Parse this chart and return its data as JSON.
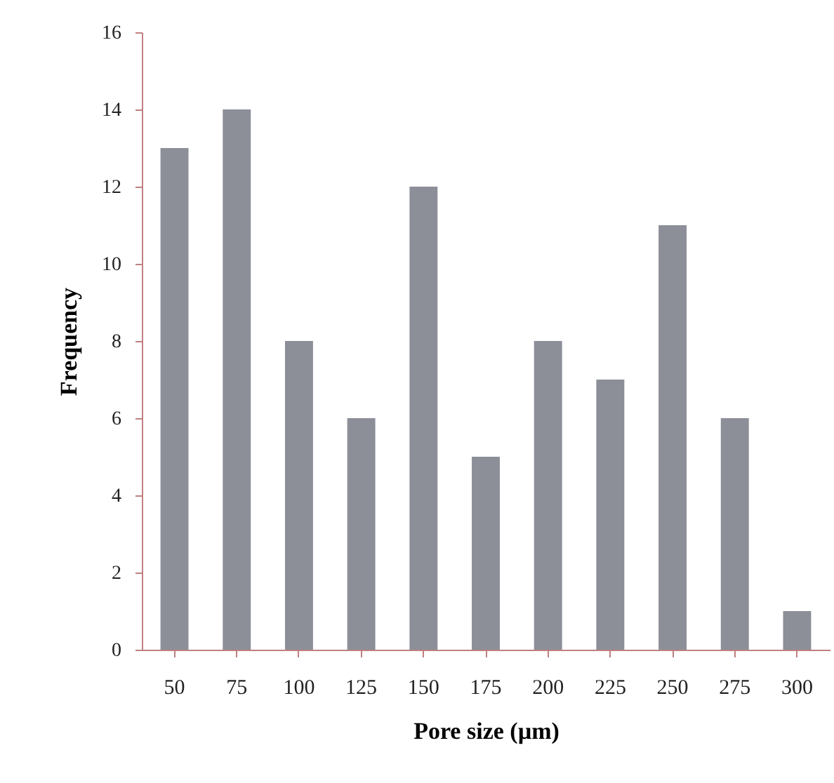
{
  "chart_data": {
    "type": "bar",
    "xlabel": "Pore size (µm)",
    "ylabel": "Frequency",
    "categories": [
      "50",
      "75",
      "100",
      "125",
      "150",
      "175",
      "200",
      "225",
      "250",
      "275",
      "300"
    ],
    "values": [
      13,
      14,
      8,
      6,
      12,
      5,
      8,
      7,
      11,
      6,
      1
    ],
    "color": "#8c8e98",
    "ylim": [
      0,
      16
    ],
    "yticks": [
      0,
      2,
      4,
      6,
      8,
      10,
      12,
      14,
      16
    ],
    "grid": false
  }
}
